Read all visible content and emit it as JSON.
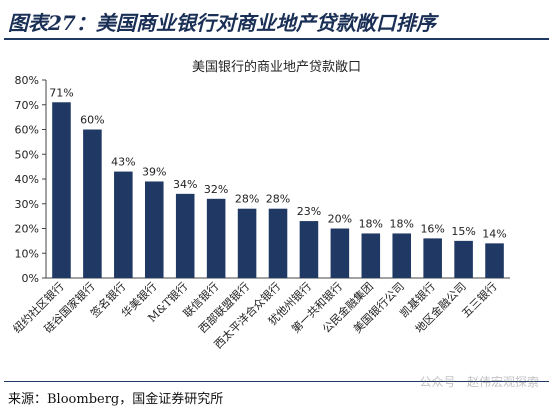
{
  "header": {
    "title": "图表27：美国商业银行对商业地产贷款敞口排序"
  },
  "footer": {
    "source": "来源：Bloomberg，国金证券研究所",
    "watermark": "公众号 · 赵伟宏观探索"
  },
  "colors": {
    "bar": "#1f3864",
    "header_text": "#1a2f55"
  },
  "chart_data": {
    "type": "bar",
    "title": "美国银行的商业地产贷款敞口",
    "categories": [
      "纽约社区银行",
      "硅谷国家银行",
      "签名银行",
      "华美银行",
      "M&T银行",
      "联信银行",
      "西部联盟银行",
      "西太平洋合众银行",
      "犹他州银行",
      "第一共和银行",
      "公民金融集团",
      "美国银行公司",
      "凯基银行",
      "地区金融公司",
      "五三银行"
    ],
    "values": [
      71,
      60,
      43,
      39,
      34,
      32,
      28,
      28,
      23,
      20,
      18,
      18,
      16,
      15,
      14
    ],
    "value_labels": [
      "71%",
      "60%",
      "43%",
      "39%",
      "34%",
      "32%",
      "28%",
      "28%",
      "23%",
      "20%",
      "18%",
      "18%",
      "16%",
      "15%",
      "14%"
    ],
    "yticks": [
      "0%",
      "10%",
      "20%",
      "30%",
      "40%",
      "50%",
      "60%",
      "70%",
      "80%"
    ],
    "ylim": [
      0,
      80
    ],
    "grid": false,
    "legend": "none"
  }
}
